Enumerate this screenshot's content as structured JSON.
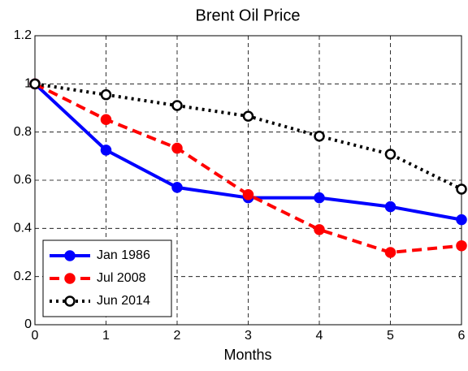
{
  "chart_data": {
    "type": "line",
    "title": "Brent Oil Price",
    "x_label": "Months",
    "x": [
      0,
      1,
      2,
      3,
      4,
      5,
      6
    ],
    "xlim": [
      0,
      6
    ],
    "xticks": [
      0,
      1,
      2,
      3,
      4,
      5,
      6
    ],
    "ylim": [
      0,
      1.2
    ],
    "yticks": [
      0,
      0.2,
      0.4,
      0.6,
      0.8,
      1,
      1.2
    ],
    "grid": true,
    "legend": "lower left",
    "series": [
      {
        "name": "Jan 1986",
        "color": "#0000ff",
        "linestyle": "solid",
        "marker_fill": "#0000ff",
        "values": [
          1,
          0.725,
          0.57,
          0.527,
          0.527,
          0.49,
          0.436
        ]
      },
      {
        "name": "Jul 2008",
        "color": "#ff0000",
        "linestyle": "dashed",
        "marker_fill": "#ff0000",
        "values": [
          1,
          0.852,
          0.733,
          0.54,
          0.395,
          0.3,
          0.328
        ]
      },
      {
        "name": "Jun 2014",
        "color": "#000000",
        "linestyle": "dotted",
        "marker_fill": "#ffffff",
        "values": [
          1,
          0.955,
          0.91,
          0.866,
          0.783,
          0.708,
          0.563
        ]
      }
    ]
  }
}
